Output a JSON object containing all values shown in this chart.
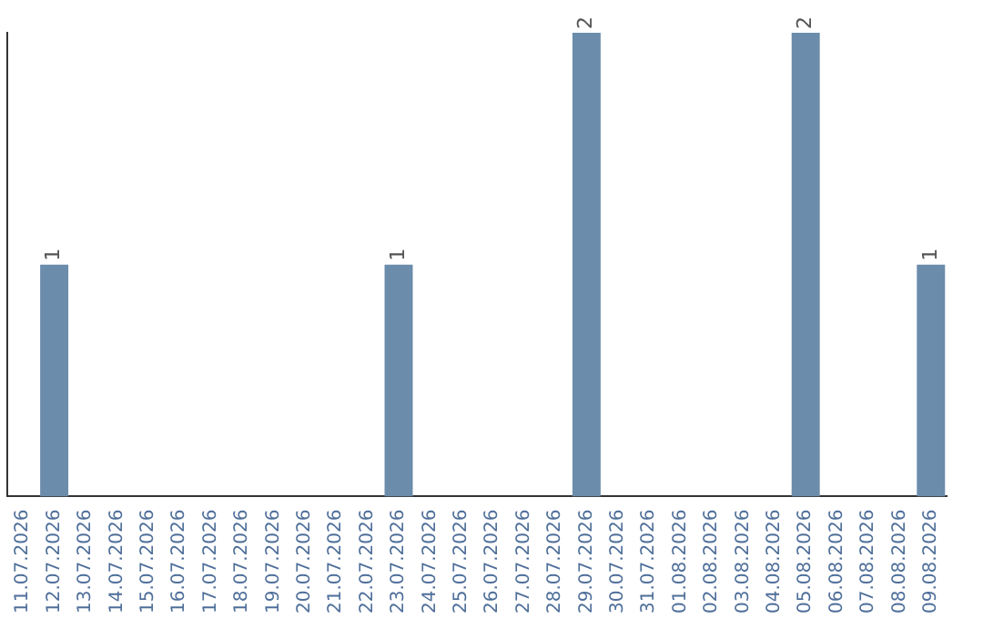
{
  "chart_data": {
    "type": "bar",
    "categories": [
      "11.07.2026",
      "12.07.2026",
      "13.07.2026",
      "14.07.2026",
      "15.07.2026",
      "16.07.2026",
      "17.07.2026",
      "18.07.2026",
      "19.07.2026",
      "20.07.2026",
      "21.07.2026",
      "22.07.2026",
      "23.07.2026",
      "24.07.2026",
      "25.07.2026",
      "26.07.2026",
      "27.07.2026",
      "28.07.2026",
      "29.07.2026",
      "30.07.2026",
      "31.07.2026",
      "01.08.2026",
      "02.08.2026",
      "03.08.2026",
      "04.08.2026",
      "05.08.2026",
      "06.08.2026",
      "07.08.2026",
      "08.08.2026",
      "09.08.2026"
    ],
    "values": [
      0,
      1,
      0,
      0,
      0,
      0,
      0,
      0,
      0,
      0,
      0,
      0,
      1,
      0,
      0,
      0,
      0,
      0,
      2,
      0,
      0,
      0,
      0,
      0,
      0,
      2,
      0,
      0,
      0,
      1
    ],
    "value_labels": [
      null,
      "1",
      null,
      null,
      null,
      null,
      null,
      null,
      null,
      null,
      null,
      null,
      "1",
      null,
      null,
      null,
      null,
      null,
      "2",
      null,
      null,
      null,
      null,
      null,
      null,
      "2",
      null,
      null,
      null,
      "1"
    ],
    "color": "#6b8cab",
    "grid": false,
    "legend": false,
    "tick_labels": "x"
  }
}
